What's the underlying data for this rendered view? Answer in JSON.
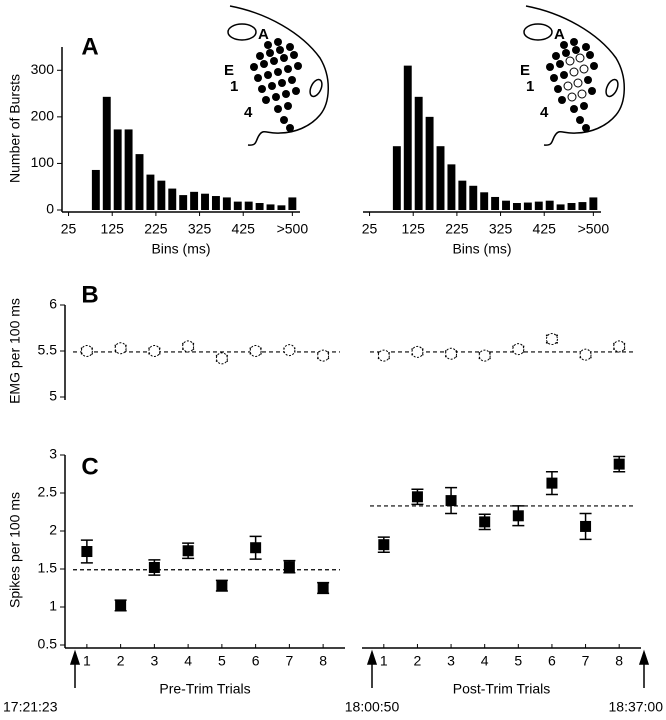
{
  "chart_data": [
    {
      "type": "histogram",
      "panel_label": "A",
      "ylabel": "Number of Bursts",
      "xlabel": "Bins (ms)",
      "bins": [
        75,
        100,
        125,
        150,
        175,
        200,
        225,
        250,
        275,
        300,
        325,
        350,
        375,
        400,
        425,
        450,
        475,
        500,
        525,
        550
      ],
      "values": [
        86,
        243,
        173,
        173,
        120,
        76,
        63,
        46,
        32,
        39,
        35,
        30,
        27,
        18,
        18,
        15,
        12,
        10,
        27
      ],
      "color": "#000000",
      "xlim": [
        10,
        555
      ],
      "ylim": [
        0,
        350
      ],
      "xticks": [
        25,
        125,
        225,
        325,
        425,
        {
          "value": 537.5,
          "label": ">500"
        }
      ],
      "yticks": [
        0,
        100,
        200,
        300
      ],
      "annotations": [
        "A",
        "E",
        "1",
        "4"
      ]
    },
    {
      "type": "histogram",
      "xlabel": "Bins (ms)",
      "bins": [
        75,
        100,
        125,
        150,
        175,
        200,
        225,
        250,
        275,
        300,
        325,
        350,
        375,
        400,
        425,
        450,
        475,
        500,
        525,
        550
      ],
      "values": [
        137,
        310,
        243,
        200,
        137,
        98,
        63,
        52,
        38,
        28,
        20,
        15,
        16,
        18,
        20,
        12,
        15,
        17,
        27
      ],
      "color": "#000000",
      "xlim": [
        10,
        555
      ],
      "ylim": [
        0,
        350
      ],
      "xticks": [
        25,
        125,
        225,
        325,
        425,
        {
          "value": 537.5,
          "label": ">500"
        }
      ],
      "annotations": [
        "A",
        "E",
        "1",
        "4"
      ]
    },
    {
      "type": "errorbar",
      "panel_label": "B",
      "ylabel": "EMG per 100 ms",
      "marker": "circle",
      "values": [
        5.5,
        5.53,
        5.5,
        5.55,
        5.42,
        5.5,
        5.51,
        5.45
      ],
      "errors": [
        0.03,
        0.03,
        0.03,
        0.03,
        0.03,
        0.03,
        0.02,
        0.03
      ],
      "mean": 5.49,
      "ylim": [
        5,
        6
      ],
      "yticks": [
        5,
        5.5,
        6
      ]
    },
    {
      "type": "errorbar",
      "marker": "circle",
      "values": [
        5.45,
        5.49,
        5.47,
        5.45,
        5.52,
        5.63,
        5.46,
        5.55
      ],
      "errors": [
        0.03,
        0.03,
        0.03,
        0.03,
        0.03,
        0.04,
        0.03,
        0.03
      ],
      "mean": 5.49,
      "ylim": [
        5,
        6
      ]
    },
    {
      "type": "errorbar",
      "panel_label": "C",
      "ylabel": "Spikes per 100 ms",
      "xlabel": "Pre-Trim Trials",
      "marker": "square",
      "categories": [
        "1",
        "2",
        "3",
        "4",
        "5",
        "6",
        "7",
        "8"
      ],
      "values": [
        1.73,
        1.02,
        1.52,
        1.74,
        1.28,
        1.78,
        1.53,
        1.25
      ],
      "errors": [
        0.15,
        0.07,
        0.1,
        0.1,
        0.07,
        0.15,
        0.08,
        0.07
      ],
      "mean": 1.49,
      "ylim": [
        0.5,
        3
      ],
      "yticks": [
        0.5,
        1,
        1.5,
        2,
        2.5,
        3
      ],
      "annotations": [
        "17:21:23"
      ]
    },
    {
      "type": "errorbar",
      "xlabel": "Post-Trim Trials",
      "marker": "square",
      "categories": [
        "1",
        "2",
        "3",
        "4",
        "5",
        "6",
        "7",
        "8"
      ],
      "values": [
        1.82,
        2.45,
        2.4,
        2.12,
        2.2,
        2.63,
        2.06,
        2.88
      ],
      "errors": [
        0.1,
        0.1,
        0.17,
        0.1,
        0.13,
        0.15,
        0.17,
        0.1
      ],
      "mean": 2.33,
      "ylim": [
        0.5,
        3
      ],
      "annotations": [
        "18:00:50",
        "18:37:00"
      ]
    }
  ]
}
